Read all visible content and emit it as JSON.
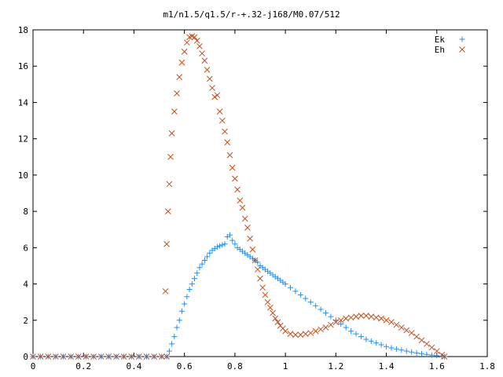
{
  "chart_data": {
    "type": "scatter",
    "title": "m1/n1.5/q1.5/r-+.32-j168/M0.07/512",
    "xlabel": "",
    "ylabel": "",
    "xlim": [
      0,
      1.8
    ],
    "ylim": [
      0,
      18
    ],
    "xticks": [
      0,
      0.2,
      0.4,
      0.6,
      0.8,
      1,
      1.2,
      1.4,
      1.6,
      1.8
    ],
    "xtick_labels": [
      "0",
      "0.2",
      "0.4",
      "0.6",
      "0.8",
      "1",
      "1.2",
      "1.4",
      "1.6",
      "1.8"
    ],
    "yticks": [
      0,
      2,
      4,
      6,
      8,
      10,
      12,
      14,
      16,
      18
    ],
    "ytick_labels": [
      "0",
      "2",
      "4",
      "6",
      "8",
      "10",
      "12",
      "14",
      "16",
      "18"
    ],
    "grid": false,
    "legend_position": "top-right",
    "series": [
      {
        "name": "Ek",
        "marker": "plus",
        "color": "#1e90ff",
        "points": [
          [
            0.0,
            0
          ],
          [
            0.03,
            0
          ],
          [
            0.06,
            0
          ],
          [
            0.09,
            0
          ],
          [
            0.12,
            0
          ],
          [
            0.15,
            0
          ],
          [
            0.18,
            0
          ],
          [
            0.21,
            0
          ],
          [
            0.24,
            0
          ],
          [
            0.27,
            0
          ],
          [
            0.3,
            0
          ],
          [
            0.33,
            0
          ],
          [
            0.36,
            0
          ],
          [
            0.39,
            0
          ],
          [
            0.42,
            0
          ],
          [
            0.45,
            0
          ],
          [
            0.48,
            0
          ],
          [
            0.51,
            0
          ],
          [
            0.53,
            0
          ],
          [
            0.54,
            0.3
          ],
          [
            0.55,
            0.7
          ],
          [
            0.56,
            1.1
          ],
          [
            0.57,
            1.6
          ],
          [
            0.58,
            2.0
          ],
          [
            0.59,
            2.5
          ],
          [
            0.6,
            2.9
          ],
          [
            0.61,
            3.3
          ],
          [
            0.62,
            3.7
          ],
          [
            0.63,
            4.0
          ],
          [
            0.64,
            4.3
          ],
          [
            0.65,
            4.6
          ],
          [
            0.66,
            4.9
          ],
          [
            0.67,
            5.1
          ],
          [
            0.68,
            5.3
          ],
          [
            0.69,
            5.5
          ],
          [
            0.7,
            5.7
          ],
          [
            0.71,
            5.85
          ],
          [
            0.72,
            5.95
          ],
          [
            0.73,
            6.05
          ],
          [
            0.74,
            6.1
          ],
          [
            0.75,
            6.15
          ],
          [
            0.76,
            6.2
          ],
          [
            0.77,
            6.6
          ],
          [
            0.78,
            6.7
          ],
          [
            0.79,
            6.4
          ],
          [
            0.8,
            6.2
          ],
          [
            0.81,
            6.0
          ],
          [
            0.82,
            5.9
          ],
          [
            0.83,
            5.8
          ],
          [
            0.84,
            5.7
          ],
          [
            0.85,
            5.6
          ],
          [
            0.86,
            5.5
          ],
          [
            0.87,
            5.4
          ],
          [
            0.88,
            5.3
          ],
          [
            0.89,
            5.2
          ],
          [
            0.9,
            5.0
          ],
          [
            0.91,
            4.9
          ],
          [
            0.92,
            4.8
          ],
          [
            0.93,
            4.7
          ],
          [
            0.94,
            4.6
          ],
          [
            0.95,
            4.5
          ],
          [
            0.96,
            4.4
          ],
          [
            0.97,
            4.3
          ],
          [
            0.98,
            4.2
          ],
          [
            0.99,
            4.1
          ],
          [
            1.0,
            4.0
          ],
          [
            1.02,
            3.8
          ],
          [
            1.04,
            3.6
          ],
          [
            1.06,
            3.4
          ],
          [
            1.08,
            3.2
          ],
          [
            1.1,
            3.0
          ],
          [
            1.12,
            2.8
          ],
          [
            1.14,
            2.6
          ],
          [
            1.16,
            2.4
          ],
          [
            1.18,
            2.2
          ],
          [
            1.2,
            2.0
          ],
          [
            1.22,
            1.8
          ],
          [
            1.24,
            1.6
          ],
          [
            1.26,
            1.4
          ],
          [
            1.28,
            1.25
          ],
          [
            1.3,
            1.1
          ],
          [
            1.32,
            0.95
          ],
          [
            1.34,
            0.85
          ],
          [
            1.36,
            0.75
          ],
          [
            1.38,
            0.65
          ],
          [
            1.4,
            0.55
          ],
          [
            1.42,
            0.48
          ],
          [
            1.44,
            0.42
          ],
          [
            1.46,
            0.36
          ],
          [
            1.48,
            0.3
          ],
          [
            1.5,
            0.25
          ],
          [
            1.52,
            0.2
          ],
          [
            1.54,
            0.16
          ],
          [
            1.56,
            0.12
          ],
          [
            1.58,
            0.08
          ],
          [
            1.6,
            0.05
          ],
          [
            1.62,
            0.02
          ],
          [
            1.63,
            0.0
          ]
        ]
      },
      {
        "name": "Eh",
        "marker": "cross",
        "color": "#c0501e",
        "points": [
          [
            0.0,
            0
          ],
          [
            0.03,
            0
          ],
          [
            0.06,
            0
          ],
          [
            0.09,
            0
          ],
          [
            0.12,
            0
          ],
          [
            0.15,
            0
          ],
          [
            0.18,
            0
          ],
          [
            0.21,
            0
          ],
          [
            0.24,
            0
          ],
          [
            0.27,
            0
          ],
          [
            0.3,
            0
          ],
          [
            0.33,
            0
          ],
          [
            0.36,
            0
          ],
          [
            0.39,
            0
          ],
          [
            0.42,
            0
          ],
          [
            0.45,
            0
          ],
          [
            0.48,
            0
          ],
          [
            0.51,
            0
          ],
          [
            0.53,
            0
          ],
          [
            0.525,
            3.6
          ],
          [
            0.53,
            6.2
          ],
          [
            0.535,
            8.0
          ],
          [
            0.54,
            9.5
          ],
          [
            0.545,
            11.0
          ],
          [
            0.55,
            12.3
          ],
          [
            0.56,
            13.5
          ],
          [
            0.57,
            14.5
          ],
          [
            0.58,
            15.4
          ],
          [
            0.59,
            16.2
          ],
          [
            0.6,
            16.8
          ],
          [
            0.61,
            17.3
          ],
          [
            0.62,
            17.6
          ],
          [
            0.63,
            17.65
          ],
          [
            0.64,
            17.6
          ],
          [
            0.65,
            17.4
          ],
          [
            0.66,
            17.1
          ],
          [
            0.67,
            16.7
          ],
          [
            0.68,
            16.3
          ],
          [
            0.69,
            15.8
          ],
          [
            0.7,
            15.3
          ],
          [
            0.71,
            14.8
          ],
          [
            0.72,
            14.3
          ],
          [
            0.73,
            14.4
          ],
          [
            0.74,
            13.5
          ],
          [
            0.75,
            13.0
          ],
          [
            0.76,
            12.4
          ],
          [
            0.77,
            11.8
          ],
          [
            0.78,
            11.1
          ],
          [
            0.79,
            10.4
          ],
          [
            0.8,
            9.8
          ],
          [
            0.81,
            9.2
          ],
          [
            0.82,
            8.6
          ],
          [
            0.83,
            8.2
          ],
          [
            0.84,
            7.6
          ],
          [
            0.85,
            7.1
          ],
          [
            0.86,
            6.5
          ],
          [
            0.87,
            5.9
          ],
          [
            0.88,
            5.3
          ],
          [
            0.89,
            4.8
          ],
          [
            0.9,
            4.3
          ],
          [
            0.91,
            3.8
          ],
          [
            0.92,
            3.4
          ],
          [
            0.93,
            3.0
          ],
          [
            0.94,
            2.7
          ],
          [
            0.95,
            2.4
          ],
          [
            0.96,
            2.1
          ],
          [
            0.97,
            1.9
          ],
          [
            0.98,
            1.7
          ],
          [
            0.99,
            1.55
          ],
          [
            1.0,
            1.4
          ],
          [
            1.02,
            1.25
          ],
          [
            1.04,
            1.2
          ],
          [
            1.06,
            1.2
          ],
          [
            1.08,
            1.25
          ],
          [
            1.1,
            1.3
          ],
          [
            1.12,
            1.4
          ],
          [
            1.14,
            1.5
          ],
          [
            1.16,
            1.6
          ],
          [
            1.18,
            1.75
          ],
          [
            1.2,
            1.9
          ],
          [
            1.22,
            2.0
          ],
          [
            1.24,
            2.1
          ],
          [
            1.26,
            2.15
          ],
          [
            1.28,
            2.2
          ],
          [
            1.3,
            2.25
          ],
          [
            1.32,
            2.25
          ],
          [
            1.34,
            2.2
          ],
          [
            1.36,
            2.15
          ],
          [
            1.38,
            2.1
          ],
          [
            1.4,
            2.0
          ],
          [
            1.42,
            1.9
          ],
          [
            1.44,
            1.75
          ],
          [
            1.46,
            1.6
          ],
          [
            1.48,
            1.45
          ],
          [
            1.5,
            1.3
          ],
          [
            1.52,
            1.1
          ],
          [
            1.54,
            0.9
          ],
          [
            1.56,
            0.7
          ],
          [
            1.58,
            0.5
          ],
          [
            1.6,
            0.3
          ],
          [
            1.62,
            0.1
          ],
          [
            1.63,
            0.0
          ]
        ]
      }
    ]
  }
}
